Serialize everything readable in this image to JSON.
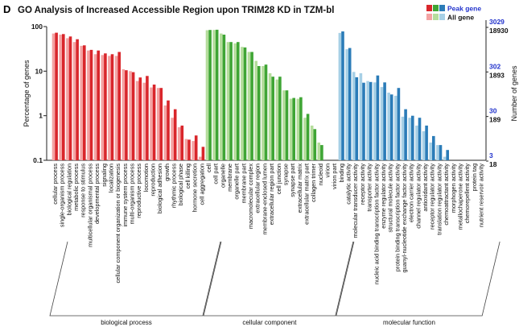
{
  "chart_data": {
    "type": "bar",
    "panel_letter": "D",
    "title": "GO Analysis of Increased Accessible Region upon TRIM28 KD in TZM-bl",
    "ylabel": "Percentage of genes",
    "ylabel_right": "Number of genes",
    "yscale": "log",
    "ylim": [
      0.1,
      100
    ],
    "yticks": [
      "100",
      "10",
      "1",
      "0.1"
    ],
    "right_ticks_peak": [
      "3029",
      "302",
      "30",
      "3"
    ],
    "right_ticks_all": [
      "18930",
      "1893",
      "189",
      "18"
    ],
    "grid": false,
    "legend_placement": "top-right",
    "legend": [
      {
        "name": "Peak gene",
        "colors": [
          "#d9262b",
          "#3fa535",
          "#2b7cb8"
        ],
        "text_color": "#2233cc"
      },
      {
        "name": "All gene",
        "colors": [
          "#f4a3a3",
          "#b5dd9c",
          "#a7d0e6"
        ],
        "text_color": "#111111"
      }
    ],
    "groups": [
      {
        "name": "biological process",
        "peak_color": "#d9262b",
        "all_color": "#f4a3a3",
        "categories": [
          "cellular process",
          "single-organism process",
          "biological regulation",
          "metabolic process",
          "response to stimulus",
          "multicellular organismal process",
          "developmental process",
          "signaling",
          "localization",
          "cellular component organization or biogenesis",
          "immune system process",
          "multi-organism process",
          "reproductive process",
          "locomotion",
          "reproduction",
          "biological adhesion",
          "growth",
          "rhythmic process",
          "biological phase",
          "cell killing",
          "hormone secretion",
          "cell aggregation"
        ],
        "all_gene": [
          70,
          66,
          55,
          45,
          37,
          29,
          24,
          23,
          22,
          22,
          11,
          10,
          6,
          5.5,
          4.3,
          4.2,
          1.7,
          0.9,
          0.55,
          0.3,
          0.27,
          0.12
        ],
        "peak_gene": [
          73,
          68,
          60,
          52,
          38,
          30,
          29,
          25,
          24,
          27,
          10.5,
          9.5,
          7.2,
          7.8,
          5,
          4.2,
          2.2,
          1.4,
          0.6,
          0.29,
          0.36,
          0.2
        ]
      },
      {
        "name": "cellular component",
        "peak_color": "#3fa535",
        "all_color": "#b5dd9c",
        "categories": [
          "cell",
          "cell part",
          "organelle",
          "membrane",
          "organelle part",
          "membrane part",
          "macromolecular complex",
          "extracellular region",
          "membrane-enclosed lumen",
          "extracellular region part",
          "cell junction",
          "synapse",
          "synapse part",
          "extracellular matrix",
          "extracellular matrix part",
          "collagen trimer",
          "nucleoid",
          "virion",
          "virion part"
        ],
        "all_gene": [
          83,
          84,
          70,
          45,
          42,
          35,
          27,
          17,
          13,
          9,
          6.5,
          3.7,
          2.4,
          2.4,
          0.9,
          0.6,
          0.25,
          0,
          0
        ],
        "peak_gene": [
          84,
          85,
          66,
          45,
          45,
          34,
          27,
          13,
          14,
          7.5,
          7.5,
          3.7,
          2.5,
          2.6,
          1.1,
          0.5,
          0.22,
          0,
          0
        ]
      },
      {
        "name": "molecular function",
        "peak_color": "#2b7cb8",
        "all_color": "#a7d0e6",
        "categories": [
          "binding",
          "catalytic activity",
          "molecular transducer activity",
          "receptor activity",
          "transporter activity",
          "nucleic acid binding transcription factor activity",
          "enzyme regulator activity",
          "structural molecule activity",
          "protein binding transcription factor activity",
          "guanyl-nucleotide exchange factor activity",
          "electron carrier activity",
          "channel regulator activity",
          "antioxidant activity",
          "receptor regulator activity",
          "translation regulator activity",
          "chemoattractant activity",
          "morphogen activity",
          "metallochaperone activity",
          "chemorepellent activity",
          "protein tag",
          "nutrient reservoir activity"
        ],
        "all_gene": [
          72,
          31,
          9.6,
          9,
          6,
          5.6,
          4.4,
          3.3,
          2.8,
          0.95,
          0.9,
          0.6,
          0.45,
          0.25,
          0.22,
          0.12,
          0,
          0,
          0,
          0,
          0
        ],
        "peak_gene": [
          78,
          33,
          7.3,
          5.5,
          5.7,
          8,
          5.6,
          3,
          4.2,
          1.4,
          1,
          0.9,
          0.6,
          0.35,
          0.22,
          0.17,
          0,
          0,
          0,
          0,
          0
        ]
      }
    ]
  }
}
